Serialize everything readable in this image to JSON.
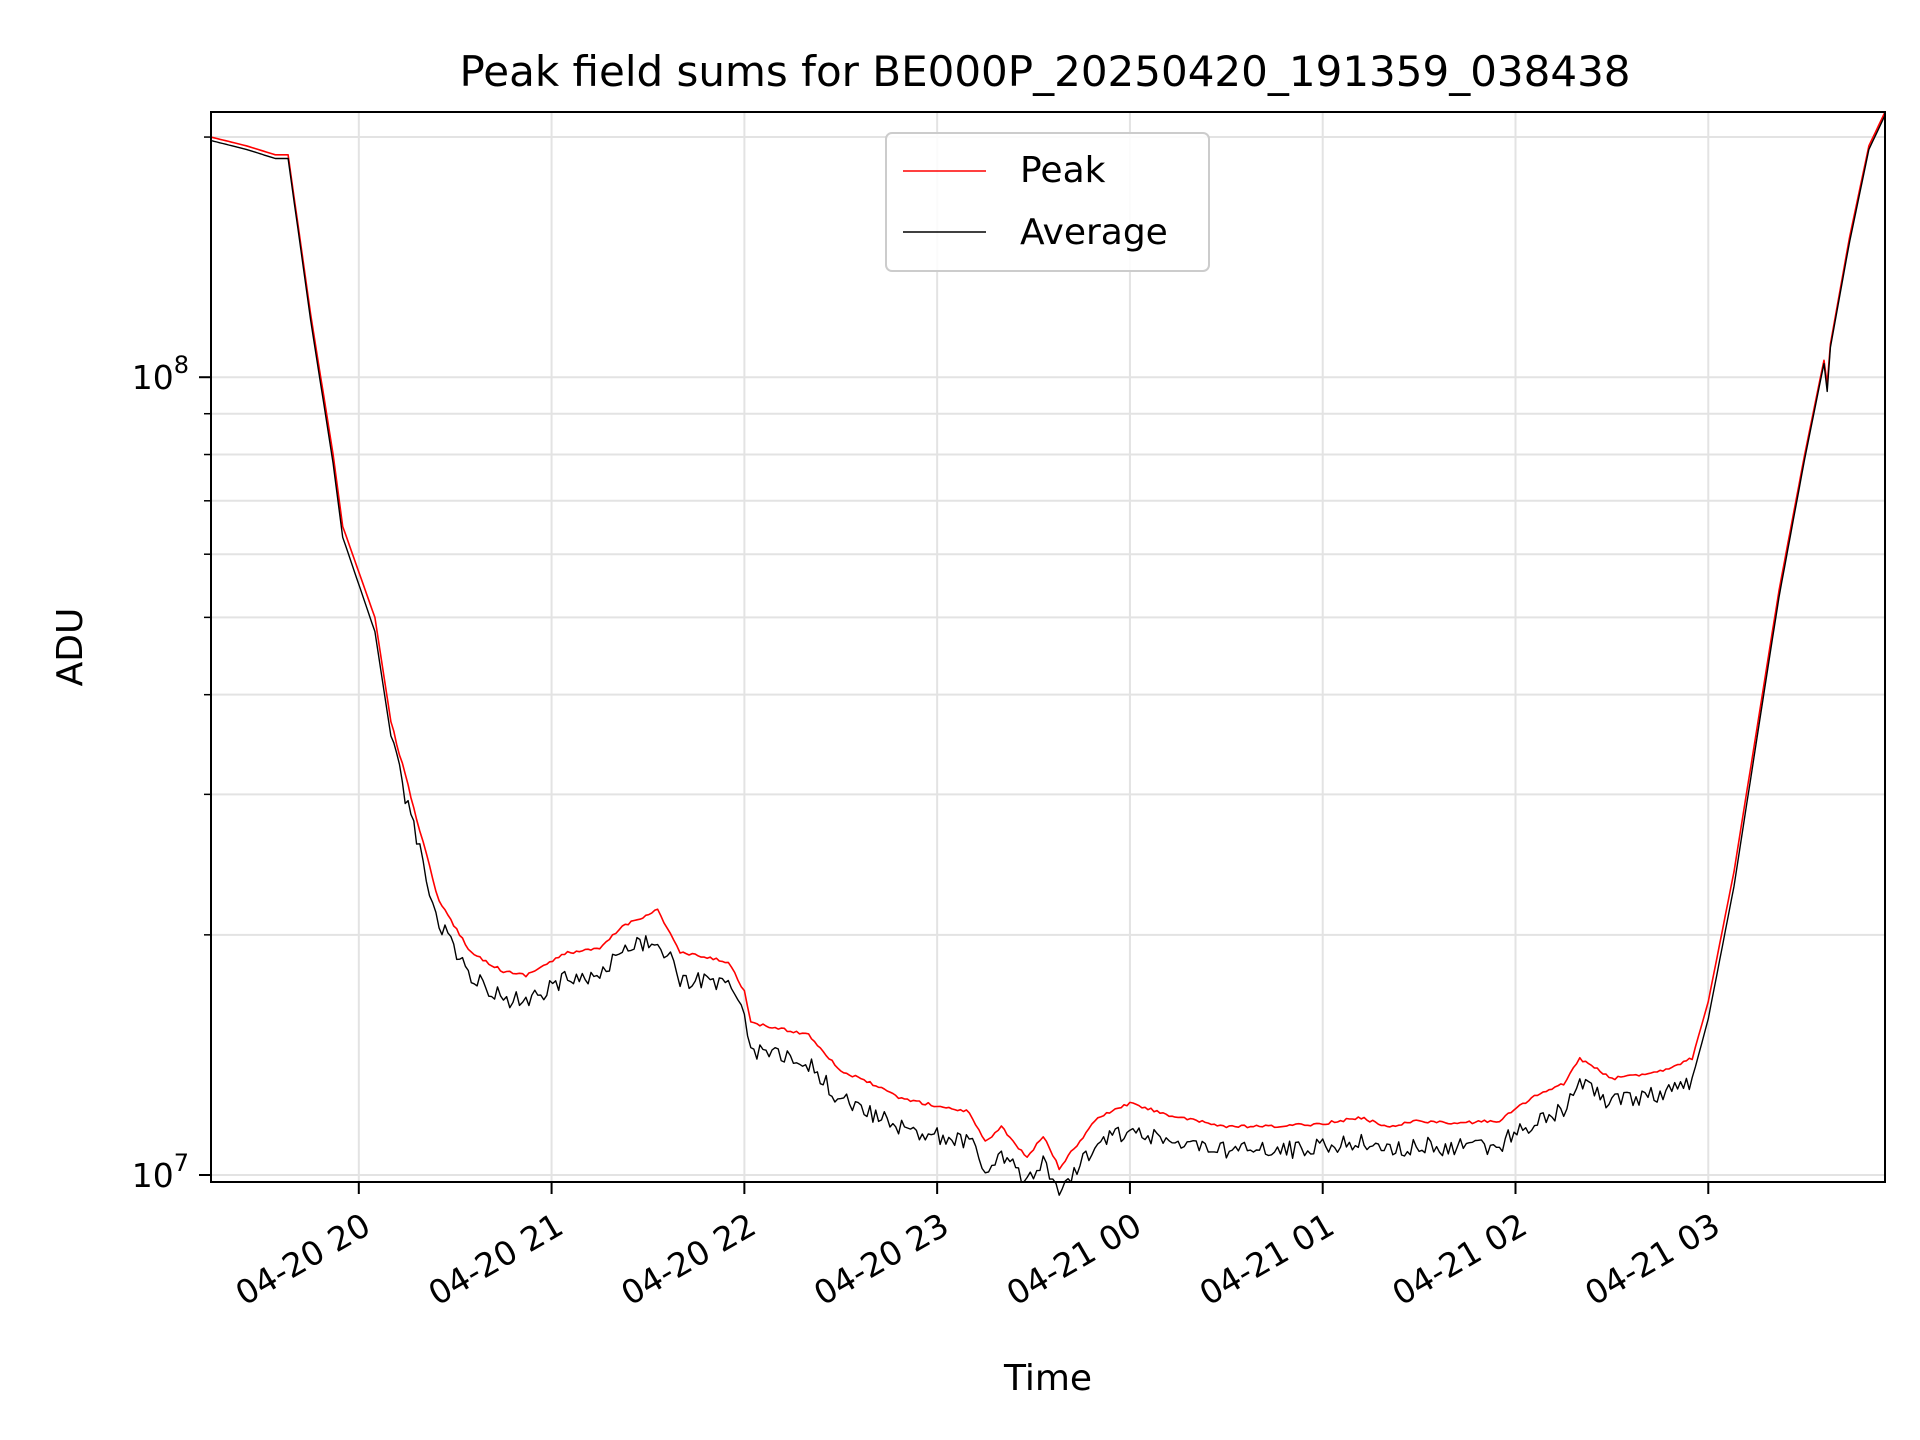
{
  "chart_data": {
    "type": "line",
    "title": "Peak field sums for BE000P_20250420_191359_038438",
    "xlabel": "Time",
    "ylabel": "ADU",
    "yscale": "log",
    "ylim": [
      9800000,
      215000000
    ],
    "xlim": [
      "2025-04-20 19:14",
      "2025-04-21 03:55"
    ],
    "xticks": [
      "04-20 20",
      "04-20 21",
      "04-20 22",
      "04-20 23",
      "04-21 00",
      "04-21 01",
      "04-21 02",
      "04-21 03"
    ],
    "yticks": [
      {
        "base": "10",
        "exp": "7",
        "value": 10000000
      },
      {
        "base": "10",
        "exp": "8",
        "value": 100000000
      }
    ],
    "grid": true,
    "legend_position": "top-center",
    "series": [
      {
        "name": "Peak",
        "color": "#ff0000",
        "x": [
          "2025-04-20 19:14",
          "2025-04-20 19:25",
          "2025-04-20 19:34",
          "2025-04-20 19:38",
          "2025-04-20 19:45",
          "2025-04-20 19:52",
          "2025-04-20 19:55",
          "2025-04-20 20:05",
          "2025-04-20 20:10",
          "2025-04-20 20:18",
          "2025-04-20 20:25",
          "2025-04-20 20:35",
          "2025-04-20 20:45",
          "2025-04-20 20:52",
          "2025-04-20 21:05",
          "2025-04-20 21:15",
          "2025-04-20 21:22",
          "2025-04-20 21:33",
          "2025-04-20 21:40",
          "2025-04-20 21:55",
          "2025-04-20 22:00",
          "2025-04-20 22:02",
          "2025-04-20 22:20",
          "2025-04-20 22:30",
          "2025-04-20 22:40",
          "2025-04-20 22:48",
          "2025-04-20 23:00",
          "2025-04-20 23:10",
          "2025-04-20 23:15",
          "2025-04-20 23:20",
          "2025-04-20 23:28",
          "2025-04-20 23:33",
          "2025-04-20 23:38",
          "2025-04-20 23:50",
          "2025-04-21 00:00",
          "2025-04-21 00:15",
          "2025-04-21 00:30",
          "2025-04-21 00:45",
          "2025-04-21 01:00",
          "2025-04-21 01:12",
          "2025-04-21 01:20",
          "2025-04-21 01:30",
          "2025-04-21 01:40",
          "2025-04-21 01:55",
          "2025-04-21 02:05",
          "2025-04-21 02:15",
          "2025-04-21 02:20",
          "2025-04-21 02:30",
          "2025-04-21 02:45",
          "2025-04-21 02:55",
          "2025-04-21 03:00",
          "2025-04-21 03:08",
          "2025-04-21 03:15",
          "2025-04-21 03:22",
          "2025-04-21 03:30",
          "2025-04-21 03:36",
          "2025-04-21 03:37",
          "2025-04-21 03:38",
          "2025-04-21 03:44",
          "2025-04-21 03:50",
          "2025-04-21 03:55"
        ],
        "y": [
          200000000,
          195000000,
          190000000,
          190000000,
          120000000,
          80000000,
          65000000,
          50000000,
          37000000,
          28000000,
          22000000,
          19000000,
          18000000,
          17800000,
          19000000,
          19200000,
          20500000,
          21500000,
          19000000,
          18500000,
          17000000,
          15500000,
          15000000,
          13500000,
          13000000,
          12500000,
          12200000,
          12000000,
          11000000,
          11500000,
          10500000,
          11200000,
          10200000,
          11800000,
          12300000,
          11800000,
          11500000,
          11500000,
          11600000,
          11800000,
          11500000,
          11700000,
          11600000,
          11700000,
          12500000,
          13000000,
          14000000,
          13200000,
          13500000,
          14000000,
          16500000,
          24000000,
          36000000,
          54000000,
          80000000,
          105000000,
          98000000,
          110000000,
          150000000,
          195000000,
          215000000
        ]
      },
      {
        "name": "Average",
        "color": "#000000",
        "x": [
          "2025-04-20 19:14",
          "2025-04-20 19:25",
          "2025-04-20 19:34",
          "2025-04-20 19:38",
          "2025-04-20 19:45",
          "2025-04-20 19:52",
          "2025-04-20 19:55",
          "2025-04-20 20:05",
          "2025-04-20 20:10",
          "2025-04-20 20:18",
          "2025-04-20 20:25",
          "2025-04-20 20:35",
          "2025-04-20 20:45",
          "2025-04-20 20:52",
          "2025-04-20 21:05",
          "2025-04-20 21:15",
          "2025-04-20 21:22",
          "2025-04-20 21:33",
          "2025-04-20 21:40",
          "2025-04-20 21:55",
          "2025-04-20 22:00",
          "2025-04-20 22:02",
          "2025-04-20 22:20",
          "2025-04-20 22:30",
          "2025-04-20 22:40",
          "2025-04-20 22:48",
          "2025-04-20 23:00",
          "2025-04-20 23:10",
          "2025-04-20 23:15",
          "2025-04-20 23:20",
          "2025-04-20 23:28",
          "2025-04-20 23:33",
          "2025-04-20 23:38",
          "2025-04-20 23:50",
          "2025-04-21 00:00",
          "2025-04-21 00:15",
          "2025-04-21 00:30",
          "2025-04-21 00:45",
          "2025-04-21 01:00",
          "2025-04-21 01:12",
          "2025-04-21 01:20",
          "2025-04-21 01:30",
          "2025-04-21 01:40",
          "2025-04-21 01:55",
          "2025-04-21 02:05",
          "2025-04-21 02:15",
          "2025-04-21 02:20",
          "2025-04-21 02:30",
          "2025-04-21 02:45",
          "2025-04-21 02:55",
          "2025-04-21 03:00",
          "2025-04-21 03:08",
          "2025-04-21 03:15",
          "2025-04-21 03:22",
          "2025-04-21 03:30",
          "2025-04-21 03:36",
          "2025-04-21 03:37",
          "2025-04-21 03:38",
          "2025-04-21 03:44",
          "2025-04-21 03:50",
          "2025-04-21 03:55"
        ],
        "y": [
          198000000,
          193000000,
          188000000,
          188000000,
          118000000,
          78000000,
          63000000,
          48000000,
          35500000,
          26500000,
          20800000,
          17800000,
          16800000,
          16600000,
          17800000,
          18000000,
          19200000,
          20000000,
          17800000,
          17300000,
          16000000,
          14500000,
          13900000,
          12500000,
          12000000,
          11600000,
          11300000,
          11100000,
          10300000,
          10700000,
          9900000,
          10400000,
          9700000,
          11000000,
          11500000,
          11000000,
          10800000,
          10800000,
          10900000,
          11100000,
          10800000,
          11000000,
          10900000,
          11000000,
          11700000,
          12200000,
          13100000,
          12400000,
          12700000,
          13200000,
          15700000,
          23000000,
          35000000,
          53000000,
          79000000,
          104000000,
          96000000,
          109000000,
          148000000,
          193000000,
          213000000
        ]
      }
    ]
  }
}
